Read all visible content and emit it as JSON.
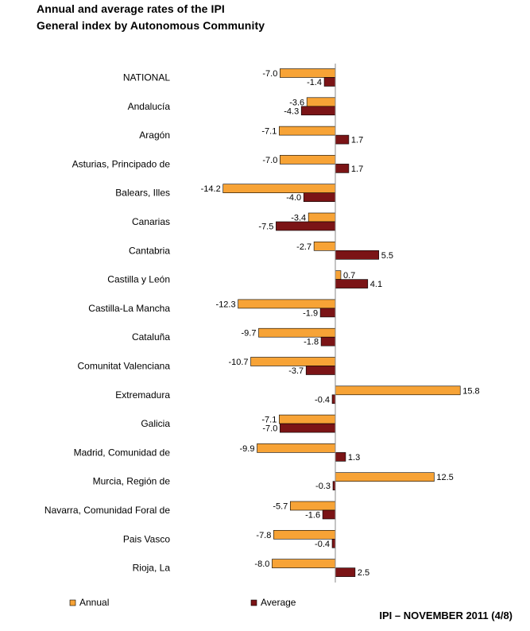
{
  "header": {
    "title_line1": "Annual and average rates of the IPI",
    "title_line2": "General index by Autonomous Community"
  },
  "footer": {
    "text": "IPI – NOVEMBER 2011 (4/8)"
  },
  "colors": {
    "annual": "#F7A336",
    "average": "#7B1416",
    "axis": "#888888"
  },
  "chart_data": {
    "type": "bar",
    "orientation": "horizontal",
    "categories": [
      "NATIONAL",
      "Andalucía",
      "Aragón",
      "Asturias, Principado de",
      "Balears, Illes",
      "Canarias",
      "Cantabria",
      "Castilla y León",
      "Castilla-La Mancha",
      "Cataluña",
      "Comunitat Valenciana",
      "Extremadura",
      "Galicia",
      "Madrid, Comunidad de",
      "Murcia, Región de",
      "Navarra, Comunidad Foral de",
      "Pais Vasco",
      "Rioja, La"
    ],
    "series": [
      {
        "name": "Annual",
        "values": [
          -7.0,
          -3.6,
          -7.1,
          -7.0,
          -14.2,
          -3.4,
          -2.7,
          0.7,
          -12.3,
          -9.7,
          -10.7,
          15.8,
          -7.1,
          -9.9,
          12.5,
          -5.7,
          -7.8,
          -8.0
        ]
      },
      {
        "name": "Average",
        "values": [
          -1.4,
          -4.3,
          1.7,
          1.7,
          -4.0,
          -7.5,
          5.5,
          4.1,
          -1.9,
          -1.8,
          -3.7,
          -0.4,
          -7.0,
          1.3,
          -0.3,
          -1.6,
          -0.4,
          2.5
        ]
      }
    ],
    "legend_position": "bottom",
    "grid": false
  }
}
